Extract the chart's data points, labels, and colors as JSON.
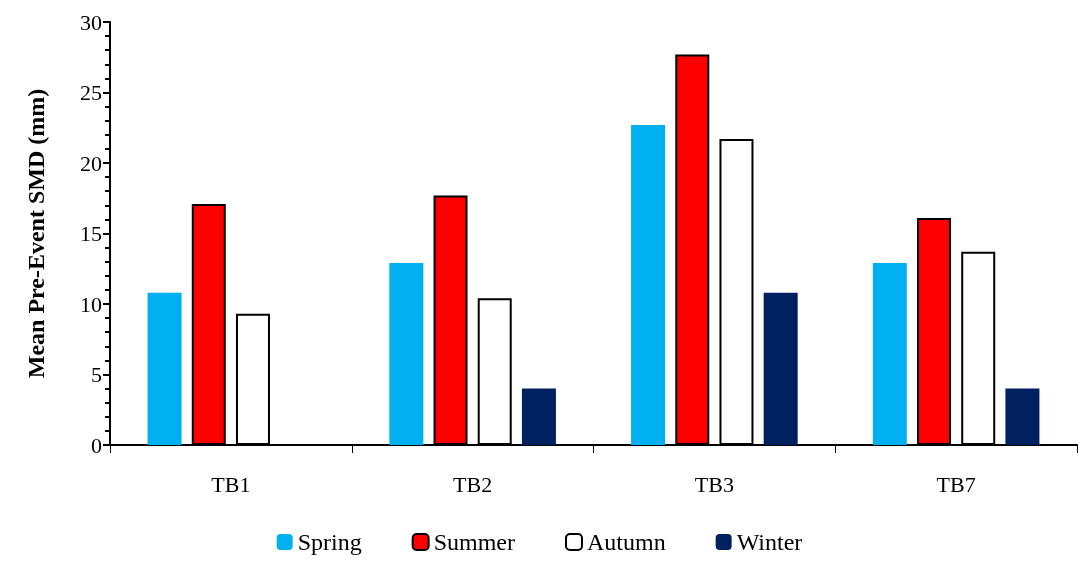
{
  "chart_data": {
    "type": "bar",
    "ylabel": "Mean Pre-Event SMD (mm)",
    "categories": [
      "TB1",
      "TB2",
      "TB3",
      "TB7"
    ],
    "series": [
      {
        "name": "Spring",
        "color": "#00b0f0",
        "values": [
          10.8,
          12.9,
          22.7,
          12.9
        ]
      },
      {
        "name": "Summer",
        "color": "#ff0000",
        "values": [
          17.1,
          17.7,
          27.7,
          16.1
        ]
      },
      {
        "name": "Autumn",
        "color": "#ffffff",
        "values": [
          9.3,
          10.4,
          21.7,
          13.7
        ]
      },
      {
        "name": "Winter",
        "color": "#002060",
        "values": [
          0,
          4.0,
          10.8,
          4.0
        ]
      }
    ],
    "ylim": [
      0,
      30
    ],
    "yticks": [
      0,
      5,
      10,
      15,
      20,
      25,
      30
    ],
    "grid": false,
    "legend": "bottom"
  }
}
